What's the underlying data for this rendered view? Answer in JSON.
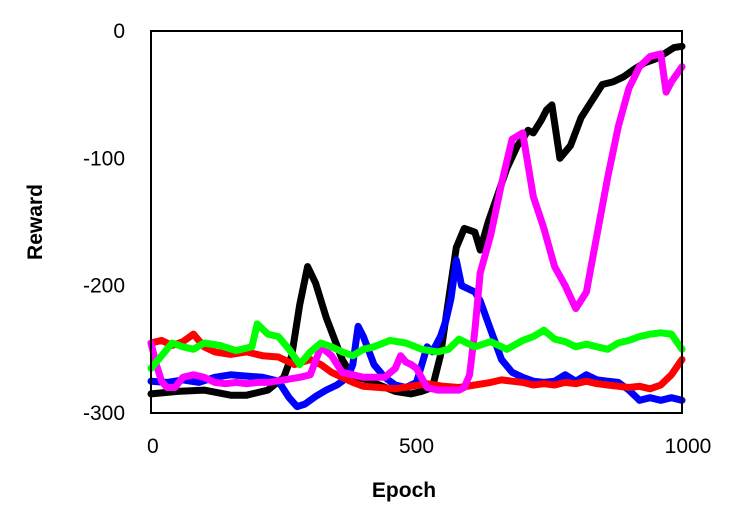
{
  "chart_data": {
    "type": "line",
    "title": "",
    "xlabel": "Epoch",
    "ylabel": "Reward",
    "xlim": [
      0,
      1000
    ],
    "ylim": [
      -300,
      0
    ],
    "xticks": [
      0,
      500,
      1000
    ],
    "yticks": [
      0,
      -100,
      -200,
      -300
    ],
    "grid": false,
    "legend": "none",
    "series": [
      {
        "color": "#000000",
        "x": [
          0,
          50,
          100,
          150,
          180,
          220,
          250,
          265,
          280,
          295,
          310,
          330,
          360,
          380,
          400,
          430,
          460,
          490,
          510,
          530,
          545,
          560,
          575,
          590,
          610,
          620,
          635,
          650,
          670,
          690,
          700,
          710,
          720,
          735,
          745,
          755,
          770,
          790,
          810,
          830,
          850,
          870,
          890,
          910,
          930,
          950,
          970,
          985,
          1000
        ],
        "y": [
          -285,
          -283,
          -282,
          -286,
          -286,
          -282,
          -272,
          -255,
          -215,
          -185,
          -198,
          -225,
          -258,
          -272,
          -273,
          -278,
          -283,
          -285,
          -283,
          -280,
          -255,
          -212,
          -170,
          -155,
          -158,
          -172,
          -150,
          -132,
          -108,
          -90,
          -85,
          -78,
          -80,
          -70,
          -62,
          -58,
          -100,
          -90,
          -68,
          -55,
          -42,
          -40,
          -36,
          -30,
          -25,
          -22,
          -17,
          -13,
          -12
        ]
      },
      {
        "color": "#0000ff",
        "x": [
          0,
          30,
          60,
          90,
          120,
          150,
          180,
          210,
          240,
          260,
          275,
          290,
          310,
          330,
          350,
          370,
          380,
          390,
          400,
          420,
          440,
          460,
          480,
          500,
          510,
          520,
          530,
          545,
          555,
          565,
          575,
          585,
          595,
          610,
          620,
          640,
          660,
          680,
          700,
          720,
          740,
          760,
          780,
          800,
          820,
          840,
          860,
          880,
          900,
          920,
          940,
          960,
          980,
          1000
        ],
        "y": [
          -275,
          -276,
          -274,
          -276,
          -272,
          -270,
          -271,
          -272,
          -275,
          -288,
          -295,
          -293,
          -287,
          -282,
          -278,
          -272,
          -262,
          -232,
          -240,
          -262,
          -272,
          -278,
          -280,
          -276,
          -262,
          -248,
          -252,
          -240,
          -228,
          -210,
          -180,
          -200,
          -202,
          -205,
          -212,
          -235,
          -258,
          -268,
          -272,
          -275,
          -276,
          -275,
          -270,
          -275,
          -270,
          -274,
          -275,
          -276,
          -282,
          -290,
          -288,
          -290,
          -288,
          -290
        ]
      },
      {
        "color": "#ff0000",
        "x": [
          0,
          20,
          40,
          60,
          80,
          100,
          120,
          150,
          180,
          210,
          240,
          270,
          300,
          320,
          340,
          360,
          380,
          400,
          430,
          460,
          490,
          520,
          550,
          580,
          610,
          640,
          660,
          680,
          700,
          720,
          740,
          760,
          780,
          800,
          820,
          840,
          860,
          880,
          900,
          920,
          940,
          960,
          980,
          1000
        ],
        "y": [
          -245,
          -243,
          -247,
          -244,
          -238,
          -248,
          -252,
          -254,
          -252,
          -255,
          -256,
          -262,
          -258,
          -262,
          -268,
          -272,
          -276,
          -279,
          -280,
          -281,
          -279,
          -277,
          -279,
          -280,
          -278,
          -276,
          -274,
          -275,
          -276,
          -278,
          -277,
          -278,
          -276,
          -277,
          -275,
          -277,
          -278,
          -279,
          -280,
          -279,
          -281,
          -278,
          -270,
          -258
        ]
      },
      {
        "color": "#ff00ff",
        "x": [
          0,
          10,
          20,
          30,
          45,
          60,
          80,
          100,
          120,
          140,
          160,
          180,
          200,
          220,
          250,
          280,
          300,
          320,
          340,
          360,
          380,
          400,
          420,
          440,
          460,
          470,
          480,
          490,
          500,
          520,
          540,
          560,
          580,
          590,
          600,
          610,
          620,
          640,
          660,
          680,
          700,
          720,
          740,
          760,
          780,
          800,
          820,
          840,
          860,
          880,
          900,
          920,
          940,
          960,
          970,
          980,
          1000
        ],
        "y": [
          -245,
          -262,
          -275,
          -280,
          -280,
          -272,
          -270,
          -272,
          -276,
          -277,
          -276,
          -277,
          -276,
          -276,
          -274,
          -272,
          -270,
          -248,
          -255,
          -268,
          -270,
          -272,
          -272,
          -272,
          -265,
          -255,
          -260,
          -262,
          -265,
          -280,
          -282,
          -282,
          -282,
          -280,
          -270,
          -235,
          -190,
          -160,
          -120,
          -85,
          -80,
          -130,
          -155,
          -185,
          -200,
          -218,
          -205,
          -160,
          -115,
          -75,
          -45,
          -28,
          -20,
          -18,
          -48,
          -40,
          -28
        ]
      },
      {
        "color": "#00ff00",
        "x": [
          0,
          20,
          40,
          60,
          80,
          100,
          130,
          160,
          190,
          200,
          220,
          240,
          260,
          280,
          300,
          320,
          340,
          360,
          380,
          400,
          420,
          450,
          480,
          510,
          540,
          560,
          580,
          610,
          640,
          670,
          700,
          720,
          740,
          760,
          780,
          800,
          820,
          840,
          860,
          880,
          900,
          920,
          940,
          960,
          980,
          1000
        ],
        "y": [
          -265,
          -255,
          -245,
          -248,
          -250,
          -245,
          -247,
          -251,
          -248,
          -230,
          -238,
          -240,
          -250,
          -262,
          -252,
          -245,
          -248,
          -252,
          -255,
          -250,
          -248,
          -243,
          -245,
          -250,
          -252,
          -250,
          -242,
          -248,
          -244,
          -250,
          -243,
          -240,
          -235,
          -242,
          -244,
          -248,
          -246,
          -248,
          -250,
          -245,
          -243,
          -240,
          -238,
          -237,
          -238,
          -250
        ]
      }
    ]
  }
}
